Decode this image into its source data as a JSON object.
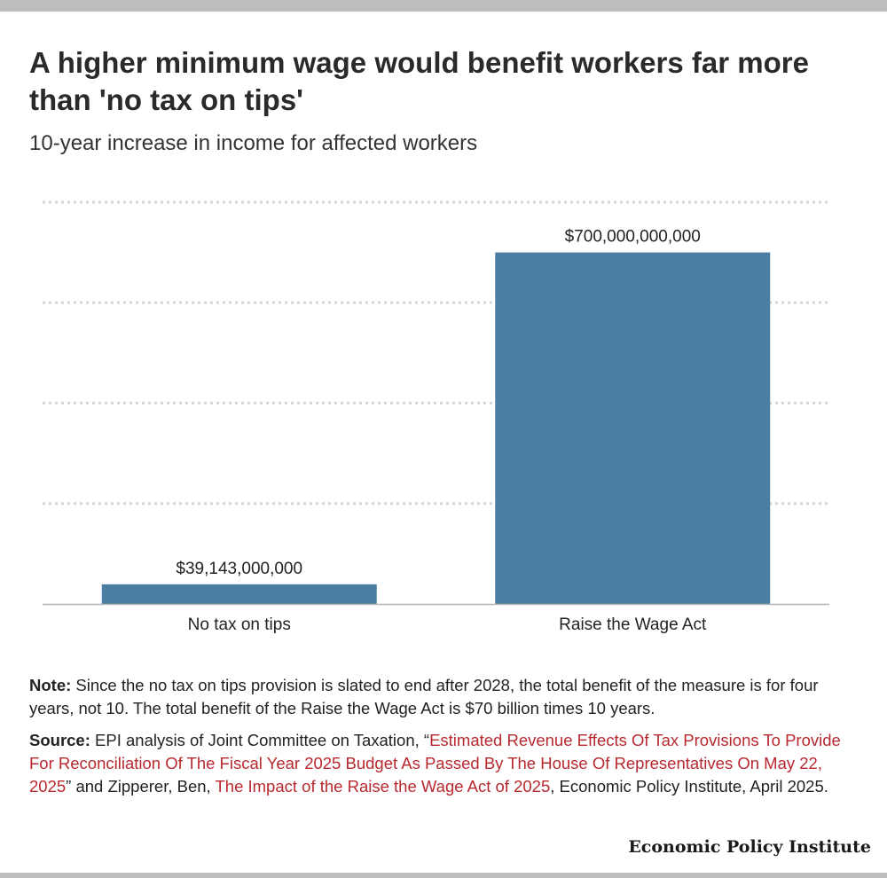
{
  "header": {
    "title": "A higher minimum wage would benefit workers far more than 'no tax on tips'",
    "subtitle": "10-year increase in income for affected workers"
  },
  "chart_data": {
    "type": "bar",
    "categories": [
      "No tax on tips",
      "Raise the Wage Act"
    ],
    "values": [
      39143000000,
      700000000000
    ],
    "data_labels": [
      "$39,143,000,000",
      "$700,000,000,000"
    ],
    "title": "A higher minimum wage would benefit workers far more than 'no tax on tips'",
    "subtitle": "10-year increase in income for affected workers",
    "xlabel": "",
    "ylabel": "",
    "ylim": [
      0,
      800000000000
    ],
    "grid": true,
    "bar_color": "#4a7fa1"
  },
  "footer": {
    "note_label": "Note:",
    "note_text": "Since the no tax on tips provision is slated to end after 2028, the total benefit of the measure is for four years, not 10. The total benefit of the Raise the Wage Act is $70 billion times 10 years.",
    "source_label": "Source:",
    "source_pre": "EPI analysis of Joint Committee on Taxation, “",
    "source_link1": "Estimated Revenue Effects Of Tax Provisions To Provide For Reconciliation Of The Fiscal Year 2025 Budget As Passed By The House Of Representatives On May 22, 2025",
    "source_mid": "” and Zipperer, Ben, ",
    "source_link2": "The Impact of the Raise the Wage Act of 2025",
    "source_post": ", Economic Policy Institute, April 2025.",
    "brand": "Economic Policy Institute"
  },
  "colors": {
    "bar": "#4a7fa1",
    "link": "#b8292f",
    "band": "#bdbdbd"
  }
}
